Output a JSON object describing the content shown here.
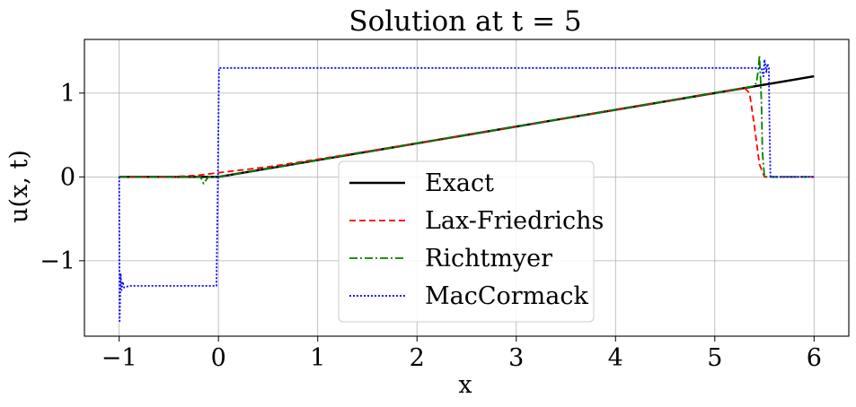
{
  "chart_data": {
    "type": "line",
    "title": "Solution at t = 5",
    "xlabel": "x",
    "ylabel": "u(x, t)",
    "xlim": [
      -1.35,
      6.35
    ],
    "ylim": [
      -1.9,
      1.64
    ],
    "xticks": [
      -1,
      0,
      1,
      2,
      3,
      4,
      5,
      6
    ],
    "xtick_labels": [
      "−1",
      "0",
      "1",
      "2",
      "3",
      "4",
      "5",
      "6"
    ],
    "yticks": [
      -1,
      0,
      1
    ],
    "ytick_labels": [
      "−1",
      "0",
      "1"
    ],
    "grid": true,
    "legend_position": "lower-center",
    "series": [
      {
        "name": "Exact",
        "color": "#000000",
        "style": "solid",
        "x": [
          -1,
          0,
          6
        ],
        "y": [
          0,
          0,
          1.2
        ]
      },
      {
        "name": "Lax-Friedrichs",
        "color": "#ff0000",
        "style": "dashed",
        "x": [
          -1,
          -0.5,
          -0.2,
          0,
          0.5,
          1,
          2,
          3,
          4,
          5,
          5.3,
          5.35,
          5.4,
          5.45,
          5.5,
          6
        ],
        "y": [
          0,
          0,
          0.02,
          0.05,
          0.12,
          0.21,
          0.4,
          0.6,
          0.8,
          1.0,
          1.06,
          1.0,
          0.6,
          0.15,
          0,
          0
        ]
      },
      {
        "name": "Richtmyer",
        "color": "#008000",
        "style": "dashdot",
        "x": [
          -1,
          -0.18,
          -0.15,
          -0.12,
          -0.1,
          0,
          1,
          2,
          3,
          4,
          5,
          5.38,
          5.42,
          5.44,
          5.45,
          5.46,
          5.47,
          5.48,
          5.5,
          5.52,
          6
        ],
        "y": [
          0,
          0,
          -0.08,
          -0.03,
          0,
          0,
          0.2,
          0.4,
          0.6,
          0.8,
          1.0,
          1.08,
          1.12,
          1.3,
          1.45,
          1.2,
          0.9,
          0.3,
          0,
          0,
          0
        ]
      },
      {
        "name": "MacCormack",
        "color": "#0000ff",
        "style": "dotted",
        "x": [
          -1,
          -0.995,
          -0.985,
          -0.975,
          -0.965,
          -0.95,
          -0.9,
          -0.5,
          -0.02,
          -0.005,
          0.005,
          0.5,
          5.0,
          5.47,
          5.49,
          5.5,
          5.52,
          5.53,
          5.545,
          5.55,
          5.56,
          5.6,
          6
        ],
        "y": [
          0,
          -1.72,
          -1.15,
          -1.35,
          -1.25,
          -1.32,
          -1.3,
          -1.3,
          -1.3,
          0,
          1.3,
          1.3,
          1.3,
          1.3,
          1.2,
          1.4,
          1.25,
          1.35,
          1.3,
          0.7,
          0,
          0,
          0
        ]
      }
    ]
  }
}
